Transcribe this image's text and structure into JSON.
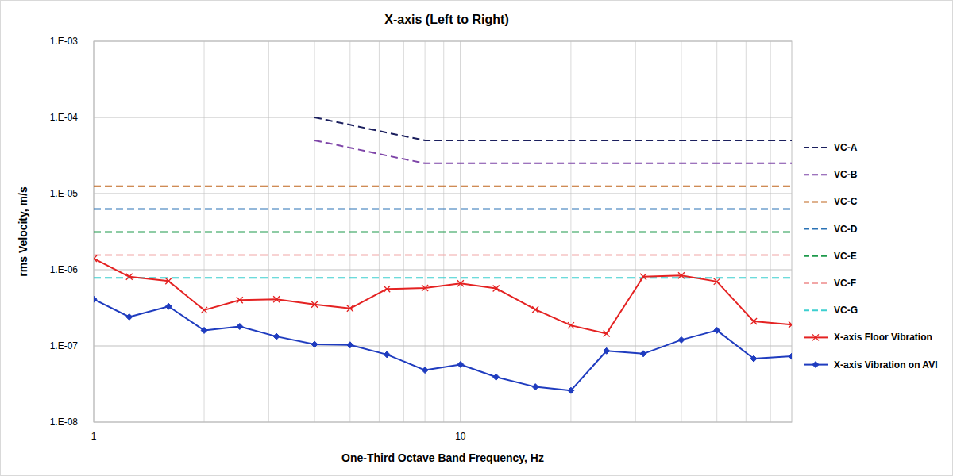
{
  "chart_data": {
    "type": "line",
    "title": "X-axis (Left to Right)",
    "x_label": "One-Third Octave Band Frequency, Hz",
    "y_label": "rms Velocity, m/s",
    "log": true,
    "grid": true,
    "legend": "right",
    "xlim": [
      1,
      80
    ],
    "ylim": [
      1e-08,
      0.001
    ],
    "xticks": [
      1,
      10
    ],
    "yticks": [
      {
        "value": 1e-08,
        "label": "1.E-08"
      },
      {
        "value": 1e-07,
        "label": "1.E-07"
      },
      {
        "value": 1e-06,
        "label": "1.E-06"
      },
      {
        "value": 1e-05,
        "label": "1.E-05"
      },
      {
        "value": 0.0001,
        "label": "1.E-04"
      },
      {
        "value": 0.001,
        "label": "1.E-03"
      }
    ],
    "x": [
      1,
      1.25,
      1.6,
      2,
      2.5,
      3.15,
      4,
      5,
      6.3,
      8,
      10,
      12.5,
      16,
      20,
      25,
      31.5,
      40,
      50,
      63,
      80
    ],
    "series": [
      {
        "name": "VC-A",
        "color": "#1b1f5e",
        "line_style": "dashed",
        "marker": "none",
        "values": [
          null,
          null,
          null,
          null,
          null,
          null,
          0.0001,
          8e-05,
          6.3e-05,
          5e-05,
          5e-05,
          5e-05,
          5e-05,
          5e-05,
          5e-05,
          5e-05,
          5e-05,
          5e-05,
          5e-05,
          5e-05
        ]
      },
      {
        "name": "VC-B",
        "color": "#7e45a8",
        "line_style": "dashed",
        "marker": "none",
        "values": [
          null,
          null,
          null,
          null,
          null,
          null,
          5e-05,
          4e-05,
          3.15e-05,
          2.5e-05,
          2.5e-05,
          2.5e-05,
          2.5e-05,
          2.5e-05,
          2.5e-05,
          2.5e-05,
          2.5e-05,
          2.5e-05,
          2.5e-05,
          2.5e-05
        ]
      },
      {
        "name": "VC-C",
        "color": "#c0661e",
        "line_style": "dashed",
        "marker": "none",
        "values": [
          1.25e-05,
          1.25e-05,
          1.25e-05,
          1.25e-05,
          1.25e-05,
          1.25e-05,
          1.25e-05,
          1.25e-05,
          1.25e-05,
          1.25e-05,
          1.25e-05,
          1.25e-05,
          1.25e-05,
          1.25e-05,
          1.25e-05,
          1.25e-05,
          1.25e-05,
          1.25e-05,
          1.25e-05,
          1.25e-05
        ]
      },
      {
        "name": "VC-D",
        "color": "#2a72b5",
        "line_style": "dashed",
        "marker": "none",
        "values": [
          6.25e-06,
          6.25e-06,
          6.25e-06,
          6.25e-06,
          6.25e-06,
          6.25e-06,
          6.25e-06,
          6.25e-06,
          6.25e-06,
          6.25e-06,
          6.25e-06,
          6.25e-06,
          6.25e-06,
          6.25e-06,
          6.25e-06,
          6.25e-06,
          6.25e-06,
          6.25e-06,
          6.25e-06,
          6.25e-06
        ]
      },
      {
        "name": "VC-E",
        "color": "#1e9a4c",
        "line_style": "dashed",
        "marker": "none",
        "values": [
          3.125e-06,
          3.125e-06,
          3.125e-06,
          3.125e-06,
          3.125e-06,
          3.125e-06,
          3.125e-06,
          3.125e-06,
          3.125e-06,
          3.125e-06,
          3.125e-06,
          3.125e-06,
          3.125e-06,
          3.125e-06,
          3.125e-06,
          3.125e-06,
          3.125e-06,
          3.125e-06,
          3.125e-06,
          3.125e-06
        ]
      },
      {
        "name": "VC-F",
        "color": "#f2a7a7",
        "line_style": "dashed",
        "marker": "none",
        "values": [
          1.5625e-06,
          1.5625e-06,
          1.5625e-06,
          1.5625e-06,
          1.5625e-06,
          1.5625e-06,
          1.5625e-06,
          1.5625e-06,
          1.5625e-06,
          1.5625e-06,
          1.5625e-06,
          1.5625e-06,
          1.5625e-06,
          1.5625e-06,
          1.5625e-06,
          1.5625e-06,
          1.5625e-06,
          1.5625e-06,
          1.5625e-06,
          1.5625e-06
        ]
      },
      {
        "name": "VC-G",
        "color": "#3ccfd0",
        "line_style": "dashed",
        "marker": "none",
        "values": [
          7.8e-07,
          7.8e-07,
          7.8e-07,
          7.8e-07,
          7.8e-07,
          7.8e-07,
          7.8e-07,
          7.8e-07,
          7.8e-07,
          7.8e-07,
          7.8e-07,
          7.8e-07,
          7.8e-07,
          7.8e-07,
          7.8e-07,
          7.8e-07,
          7.8e-07,
          7.8e-07,
          7.8e-07,
          7.8e-07
        ]
      },
      {
        "name": "X-axis Floor Vibration",
        "color": "#e42222",
        "line_style": "solid",
        "marker": "x",
        "values": [
          1.4e-06,
          8.1e-07,
          7.1e-07,
          2.95e-07,
          4e-07,
          4.1e-07,
          3.5e-07,
          3.1e-07,
          5.6e-07,
          5.75e-07,
          6.6e-07,
          5.7e-07,
          3e-07,
          1.86e-07,
          1.45e-07,
          8.1e-07,
          8.4e-07,
          7e-07,
          2.1e-07,
          1.9e-07
        ]
      },
      {
        "name": "X-axis Vibration on AVI",
        "color": "#1f3cbf",
        "line_style": "solid",
        "marker": "diamond",
        "values": [
          4.1e-07,
          2.4e-07,
          3.3e-07,
          1.6e-07,
          1.8e-07,
          1.33e-07,
          1.05e-07,
          1.03e-07,
          7.7e-08,
          4.8e-08,
          5.7e-08,
          3.9e-08,
          2.9e-08,
          2.6e-08,
          8.6e-08,
          7.9e-08,
          1.2e-07,
          1.6e-07,
          6.8e-08,
          7.3e-08
        ]
      }
    ]
  }
}
